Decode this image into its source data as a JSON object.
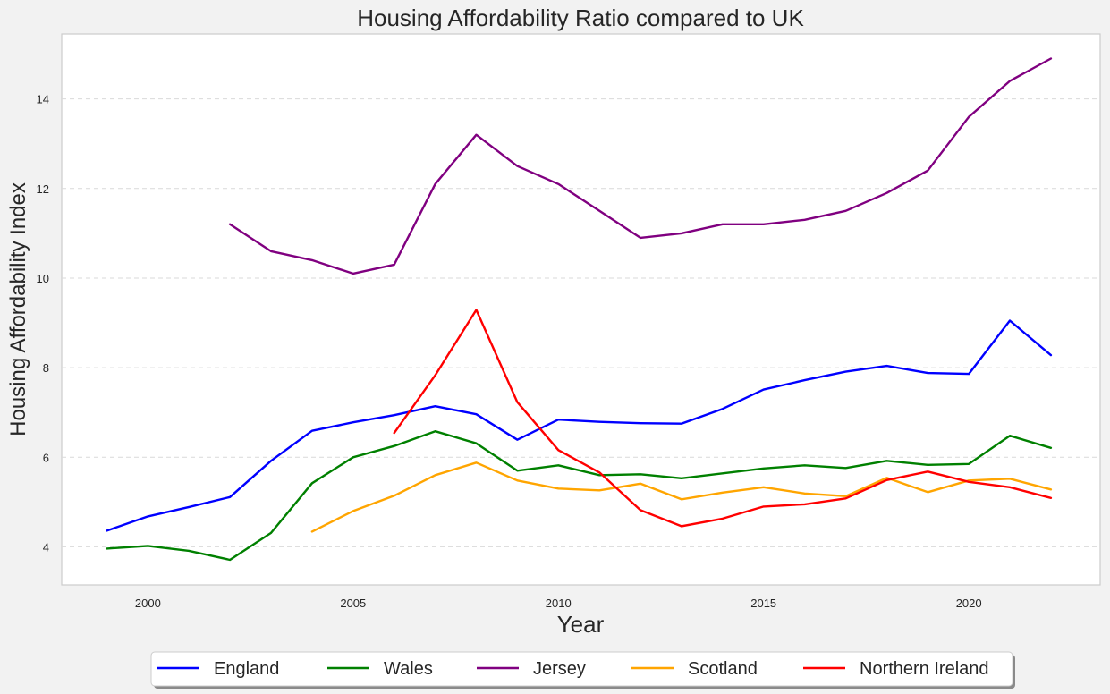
{
  "chart_data": {
    "type": "line",
    "title": "Housing Affordability Ratio compared to UK",
    "xlabel": "Year",
    "ylabel": "Housing Affordability Index",
    "xlim": [
      1997.9,
      2023.2
    ],
    "ylim": [
      3.15,
      15.45
    ],
    "xticks": [
      2000,
      2005,
      2010,
      2015,
      2020
    ],
    "yticks": [
      4,
      6,
      8,
      10,
      12,
      14
    ],
    "grid": "y-dashed",
    "legend_position": "bottom-center",
    "series": [
      {
        "name": "England",
        "color": "#0000ff",
        "points": [
          [
            1999,
            4.36
          ],
          [
            2000,
            4.68
          ],
          [
            2001,
            4.89
          ],
          [
            2002,
            5.11
          ],
          [
            2003,
            5.92
          ],
          [
            2004,
            6.59
          ],
          [
            2005,
            6.78
          ],
          [
            2006,
            6.94
          ],
          [
            2007,
            7.14
          ],
          [
            2008,
            6.96
          ],
          [
            2009,
            6.39
          ],
          [
            2010,
            6.84
          ],
          [
            2011,
            6.79
          ],
          [
            2012,
            6.76
          ],
          [
            2013,
            6.75
          ],
          [
            2014,
            7.08
          ],
          [
            2015,
            7.51
          ],
          [
            2016,
            7.72
          ],
          [
            2017,
            7.91
          ],
          [
            2018,
            8.04
          ],
          [
            2019,
            7.88
          ],
          [
            2020,
            7.86
          ],
          [
            2021,
            9.05
          ],
          [
            2022,
            8.28
          ]
        ]
      },
      {
        "name": "Wales",
        "color": "#008000",
        "points": [
          [
            1999,
            3.96
          ],
          [
            2000,
            4.02
          ],
          [
            2001,
            3.91
          ],
          [
            2002,
            3.71
          ],
          [
            2003,
            4.31
          ],
          [
            2004,
            5.42
          ],
          [
            2005,
            6.0
          ],
          [
            2006,
            6.25
          ],
          [
            2007,
            6.58
          ],
          [
            2008,
            6.31
          ],
          [
            2009,
            5.7
          ],
          [
            2010,
            5.82
          ],
          [
            2011,
            5.6
          ],
          [
            2012,
            5.62
          ],
          [
            2013,
            5.53
          ],
          [
            2014,
            5.64
          ],
          [
            2015,
            5.75
          ],
          [
            2016,
            5.82
          ],
          [
            2017,
            5.76
          ],
          [
            2018,
            5.92
          ],
          [
            2019,
            5.83
          ],
          [
            2020,
            5.85
          ],
          [
            2021,
            6.48
          ],
          [
            2022,
            6.21
          ]
        ]
      },
      {
        "name": "Jersey",
        "color": "#800080",
        "points": [
          [
            2002,
            11.2
          ],
          [
            2003,
            10.6
          ],
          [
            2004,
            10.4
          ],
          [
            2005,
            10.1
          ],
          [
            2006,
            10.3
          ],
          [
            2007,
            12.1
          ],
          [
            2008,
            13.2
          ],
          [
            2009,
            12.5
          ],
          [
            2010,
            12.1
          ],
          [
            2011,
            11.5
          ],
          [
            2012,
            10.9
          ],
          [
            2013,
            11.0
          ],
          [
            2014,
            11.2
          ],
          [
            2015,
            11.2
          ],
          [
            2016,
            11.3
          ],
          [
            2017,
            11.5
          ],
          [
            2018,
            11.9
          ],
          [
            2019,
            12.4
          ],
          [
            2020,
            13.6
          ],
          [
            2021,
            14.4
          ],
          [
            2022,
            14.9
          ]
        ]
      },
      {
        "name": "Scotland",
        "color": "#ffa500",
        "points": [
          [
            2004,
            4.34
          ],
          [
            2005,
            4.8
          ],
          [
            2006,
            5.14
          ],
          [
            2007,
            5.6
          ],
          [
            2008,
            5.88
          ],
          [
            2009,
            5.48
          ],
          [
            2010,
            5.3
          ],
          [
            2011,
            5.26
          ],
          [
            2012,
            5.41
          ],
          [
            2013,
            5.06
          ],
          [
            2014,
            5.21
          ],
          [
            2015,
            5.33
          ],
          [
            2016,
            5.19
          ],
          [
            2017,
            5.13
          ],
          [
            2018,
            5.54
          ],
          [
            2019,
            5.22
          ],
          [
            2020,
            5.48
          ],
          [
            2021,
            5.52
          ],
          [
            2022,
            5.28
          ]
        ]
      },
      {
        "name": "Northern Ireland",
        "color": "#ff0000",
        "points": [
          [
            2006,
            6.54
          ],
          [
            2007,
            7.83
          ],
          [
            2008,
            9.29
          ],
          [
            2009,
            7.23
          ],
          [
            2010,
            6.16
          ],
          [
            2011,
            5.66
          ],
          [
            2012,
            4.82
          ],
          [
            2013,
            4.46
          ],
          [
            2014,
            4.63
          ],
          [
            2015,
            4.9
          ],
          [
            2016,
            4.95
          ],
          [
            2017,
            5.08
          ],
          [
            2018,
            5.49
          ],
          [
            2019,
            5.68
          ],
          [
            2020,
            5.45
          ],
          [
            2021,
            5.33
          ],
          [
            2022,
            5.09
          ]
        ]
      }
    ]
  }
}
